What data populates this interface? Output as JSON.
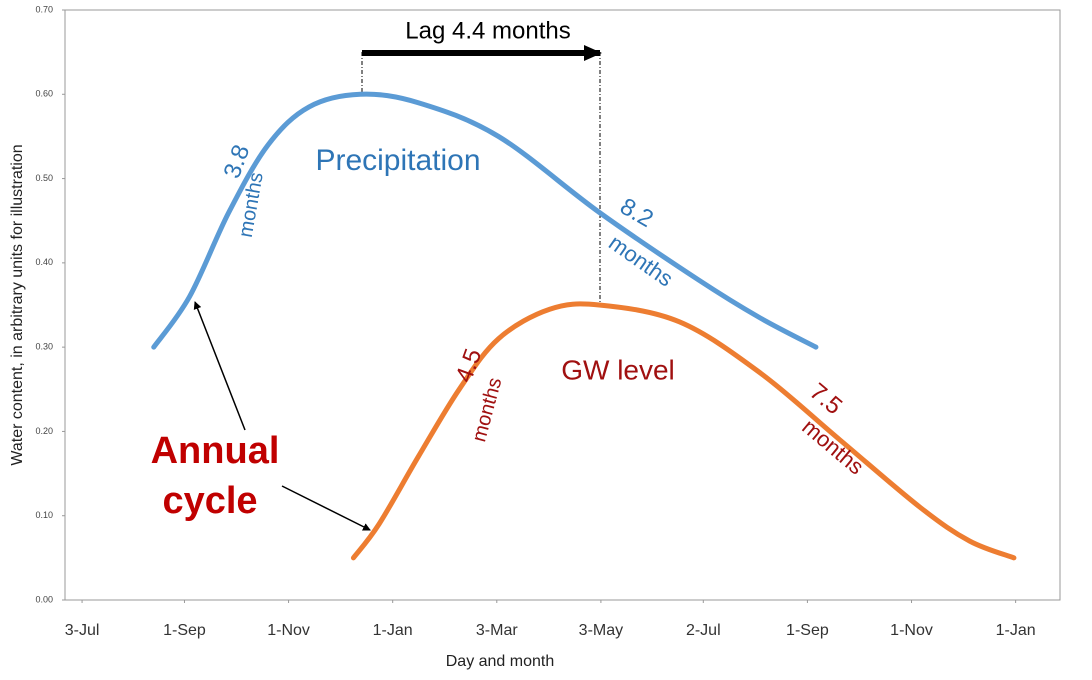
{
  "chart_data": {
    "type": "line",
    "x_label": "Day and month",
    "y_label": "Water content, in arbitrary units for illustration",
    "xlim": [
      -10,
      573
    ],
    "xticks": [
      {
        "value": 0,
        "label": "3-Jul"
      },
      {
        "value": 60,
        "label": "1-Sep"
      },
      {
        "value": 121,
        "label": "1-Nov"
      },
      {
        "value": 182,
        "label": "1-Jan"
      },
      {
        "value": 243,
        "label": "3-Mar"
      },
      {
        "value": 304,
        "label": "3-May"
      },
      {
        "value": 364,
        "label": "2-Jul"
      },
      {
        "value": 425,
        "label": "1-Sep"
      },
      {
        "value": 486,
        "label": "1-Nov"
      },
      {
        "value": 547,
        "label": "1-Jan"
      }
    ],
    "ylim": [
      0,
      0.7
    ],
    "yticks": [
      {
        "value": 0,
        "label": "0.00"
      },
      {
        "value": 0.1,
        "label": "0.10"
      },
      {
        "value": 0.2,
        "label": "0.20"
      },
      {
        "value": 0.3,
        "label": "0.30"
      },
      {
        "value": 0.4,
        "label": "0.40"
      },
      {
        "value": 0.5,
        "label": "0.50"
      },
      {
        "value": 0.6,
        "label": "0.60"
      },
      {
        "value": 0.7,
        "label": "0.70"
      }
    ],
    "grid": false,
    "series": [
      {
        "name": "Precipitation",
        "color": "#5b9bd5",
        "x": [
          42,
          63,
          86,
          109,
          133,
          163,
          197,
          244,
          303,
          361,
          397,
          430
        ],
        "values": [
          0.3,
          0.36,
          0.46,
          0.54,
          0.585,
          0.6,
          0.59,
          0.55,
          0.46,
          0.38,
          0.335,
          0.3
        ]
      },
      {
        "name": "GW level",
        "color": "#ed7d31",
        "x": [
          159,
          174,
          197,
          221,
          244,
          274,
          303,
          350,
          397,
          444,
          491,
          520,
          546
        ],
        "values": [
          0.05,
          0.09,
          0.17,
          0.25,
          0.31,
          0.345,
          0.35,
          0.33,
          0.27,
          0.19,
          0.11,
          0.07,
          0.05
        ]
      }
    ],
    "annotations": [
      "Lag  4.4 months",
      "3.8",
      "months",
      "8.2",
      "months",
      "4.5",
      "months",
      "7.5",
      "months",
      "Annual",
      "cycle"
    ]
  }
}
